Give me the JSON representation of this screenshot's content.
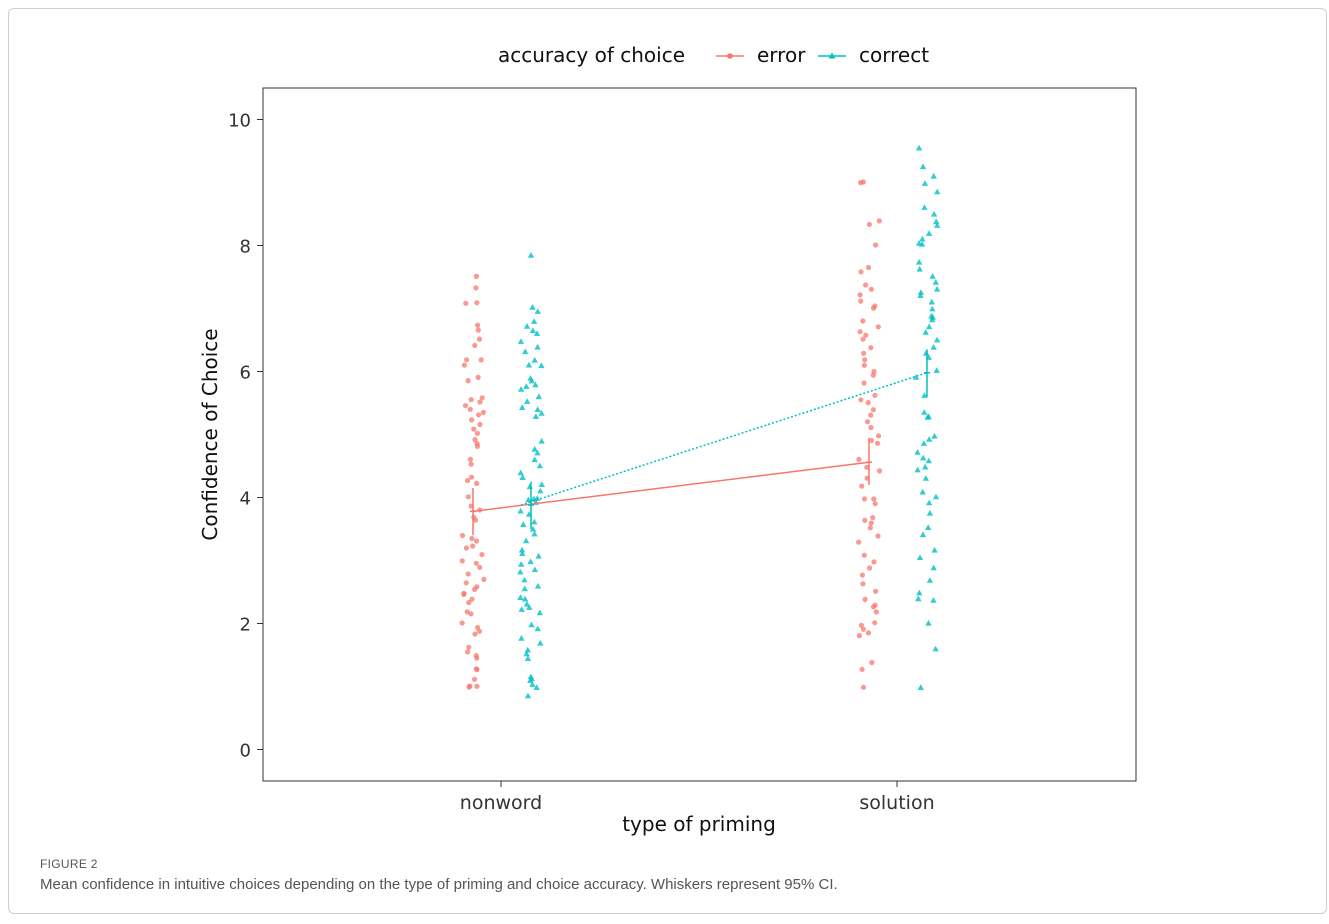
{
  "figure": {
    "label": "FIGURE 2",
    "caption": "Mean confidence in intuitive choices depending on the type of priming and choice accuracy. Whiskers represent 95% CI."
  },
  "chart_data": {
    "type": "scatter",
    "title": "",
    "xlabel": "type of priming",
    "ylabel": "Confidence of Choice",
    "categories": [
      "nonword",
      "solution"
    ],
    "ylim": [
      -0.5,
      10.5
    ],
    "yticks": [
      0,
      2,
      4,
      6,
      8,
      10
    ],
    "grid": false,
    "legend": {
      "title": "accuracy of choice",
      "position": "top",
      "entries": [
        "error",
        "correct"
      ]
    },
    "series": [
      {
        "name": "error",
        "color": "#F8766D",
        "marker": "circle",
        "line_style": "solid",
        "means": [
          3.78,
          4.56
        ],
        "ci": [
          [
            3.4,
            4.15
          ],
          [
            4.2,
            4.95
          ]
        ],
        "points": [
          [
            7.5,
            7.35,
            7.1,
            7.1,
            6.75,
            6.65,
            6.5,
            6.4,
            6.2,
            6.2,
            6.1,
            5.9,
            5.85,
            5.6,
            5.55,
            5.5,
            5.45,
            5.4,
            5.35,
            5.3,
            5.25,
            5.15,
            5.1,
            5.0,
            4.9,
            4.85,
            4.8,
            4.6,
            4.55,
            4.3,
            4.25,
            4.2,
            4.0,
            3.85,
            3.8,
            3.7,
            3.65,
            3.4,
            3.35,
            3.3,
            3.25,
            3.2,
            3.1,
            3.0,
            2.95,
            2.9,
            2.8,
            2.7,
            2.65,
            2.6,
            2.55,
            2.5,
            2.45,
            2.4,
            2.35,
            2.2,
            2.15,
            2.0,
            1.95,
            1.9,
            1.85,
            1.6,
            1.55,
            1.5,
            1.45,
            1.3,
            1.25,
            1.1,
            1.0,
            1.0,
            1.0
          ],
          [
            9.0,
            9.0,
            8.4,
            8.35,
            8.0,
            7.65,
            7.6,
            7.35,
            7.3,
            7.2,
            7.1,
            7.05,
            7.0,
            6.8,
            6.7,
            6.65,
            6.6,
            6.5,
            6.4,
            6.3,
            6.2,
            6.1,
            6.0,
            5.95,
            5.8,
            5.6,
            5.55,
            5.5,
            5.4,
            5.3,
            5.2,
            5.1,
            5.0,
            4.9,
            4.85,
            4.6,
            4.5,
            4.4,
            4.3,
            4.2,
            4.0,
            4.0,
            3.9,
            3.7,
            3.65,
            3.6,
            3.5,
            3.4,
            3.3,
            3.1,
            3.0,
            2.9,
            2.75,
            2.65,
            2.5,
            2.4,
            2.3,
            2.25,
            2.2,
            2.0,
            1.95,
            1.9,
            1.85,
            1.8,
            1.4,
            1.25,
            1.0
          ]
        ]
      },
      {
        "name": "correct",
        "color": "#00BFC4",
        "marker": "triangle",
        "line_style": "dotted",
        "means": [
          3.88,
          5.98
        ],
        "ci": [
          [
            3.5,
            4.25
          ],
          [
            5.6,
            6.35
          ]
        ],
        "points": [
          [
            7.85,
            7.0,
            6.95,
            6.8,
            6.7,
            6.65,
            6.6,
            6.5,
            6.4,
            6.3,
            6.2,
            6.1,
            6.1,
            5.9,
            5.85,
            5.8,
            5.75,
            5.7,
            5.6,
            5.5,
            5.45,
            5.4,
            5.35,
            5.3,
            4.9,
            4.75,
            4.7,
            4.6,
            4.5,
            4.4,
            4.3,
            4.2,
            4.15,
            4.1,
            4.0,
            4.0,
            3.95,
            3.9,
            3.8,
            3.75,
            3.6,
            3.55,
            3.5,
            3.4,
            3.3,
            3.15,
            3.1,
            3.05,
            3.0,
            2.95,
            2.85,
            2.8,
            2.7,
            2.6,
            2.55,
            2.4,
            2.4,
            2.3,
            2.25,
            2.2,
            2.15,
            2.0,
            1.9,
            1.75,
            1.7,
            1.6,
            1.5,
            1.45,
            1.15,
            1.1,
            1.1,
            1.05,
            1.0,
            0.85
          ],
          [
            9.55,
            9.25,
            9.1,
            9.0,
            8.85,
            8.6,
            8.5,
            8.4,
            8.3,
            8.2,
            8.1,
            8.05,
            8.0,
            7.75,
            7.6,
            7.5,
            7.4,
            7.3,
            7.25,
            7.2,
            7.1,
            7.0,
            6.9,
            6.85,
            6.8,
            6.7,
            6.6,
            6.5,
            6.4,
            6.3,
            6.2,
            6.0,
            5.9,
            5.6,
            5.35,
            5.3,
            5.25,
            4.95,
            4.9,
            4.85,
            4.7,
            4.65,
            4.6,
            4.5,
            4.45,
            4.3,
            4.1,
            4.0,
            3.9,
            3.75,
            3.5,
            3.4,
            3.15,
            3.05,
            2.9,
            2.7,
            2.5,
            2.4,
            2.35,
            2.0,
            1.6,
            1.0
          ]
        ]
      }
    ]
  }
}
